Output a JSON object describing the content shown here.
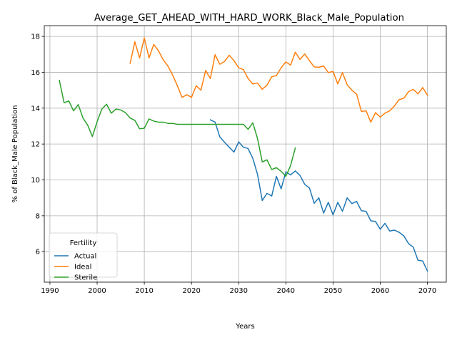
{
  "chart_data": {
    "type": "line",
    "title": "Average_GET_AHEAD_WITH_HARD_WORK_Black_Male_Population",
    "xlabel": "Years",
    "ylabel": "% of Black_Male Population",
    "xlim": [
      1988.8,
      2074.0
    ],
    "ylim": [
      4.3,
      18.6
    ],
    "xticks": [
      1990,
      2000,
      2010,
      2020,
      2030,
      2040,
      2050,
      2060,
      2070
    ],
    "yticks": [
      6,
      8,
      10,
      12,
      14,
      16,
      18
    ],
    "grid": true,
    "legend": {
      "title": "Fertility",
      "placement": "lower-left"
    },
    "series": [
      {
        "name": "Actual",
        "color": "#1f77b4",
        "x": [
          2024,
          2025,
          2026,
          2027,
          2028,
          2029,
          2030,
          2031,
          2032,
          2033,
          2034,
          2035,
          2036,
          2037,
          2038,
          2039,
          2040,
          2041,
          2042,
          2043,
          2044,
          2045,
          2046,
          2047,
          2048,
          2049,
          2050,
          2051,
          2052,
          2053,
          2054,
          2055,
          2056,
          2057,
          2058,
          2059,
          2060,
          2061,
          2062,
          2063,
          2064,
          2065,
          2066,
          2067,
          2068,
          2069,
          2070
        ],
        "y": [
          13.35,
          13.22,
          12.4,
          12.1,
          11.82,
          11.55,
          12.12,
          11.82,
          11.75,
          11.2,
          10.3,
          8.85,
          9.25,
          9.1,
          10.2,
          9.5,
          10.45,
          10.28,
          10.5,
          10.25,
          9.75,
          9.55,
          8.7,
          9.0,
          8.15,
          8.75,
          8.05,
          8.75,
          8.25,
          9.0,
          8.68,
          8.8,
          8.28,
          8.25,
          7.72,
          7.68,
          7.25,
          7.58,
          7.15,
          7.2,
          7.08,
          6.88,
          6.45,
          6.25,
          5.52,
          5.48,
          4.92
        ]
      },
      {
        "name": "Ideal",
        "color": "#ff7f0e",
        "x": [
          2007,
          2008,
          2009,
          2010,
          2011,
          2012,
          2013,
          2014,
          2015,
          2016,
          2017,
          2018,
          2019,
          2020,
          2021,
          2022,
          2023,
          2024,
          2025,
          2026,
          2027,
          2028,
          2029,
          2030,
          2031,
          2032,
          2033,
          2034,
          2035,
          2036,
          2037,
          2038,
          2039,
          2040,
          2041,
          2042,
          2043,
          2044,
          2045,
          2046,
          2047,
          2048,
          2049,
          2050,
          2051,
          2052,
          2053,
          2054,
          2055,
          2056,
          2057,
          2058,
          2059,
          2060,
          2061,
          2062,
          2063,
          2064,
          2065,
          2066,
          2067,
          2068,
          2069,
          2070
        ],
        "y": [
          16.5,
          17.7,
          16.8,
          17.92,
          16.8,
          17.55,
          17.2,
          16.7,
          16.35,
          15.85,
          15.25,
          14.6,
          14.75,
          14.6,
          15.25,
          15.0,
          16.1,
          15.65,
          16.98,
          16.45,
          16.6,
          16.95,
          16.65,
          16.25,
          16.15,
          15.65,
          15.35,
          15.4,
          15.05,
          15.28,
          15.75,
          15.82,
          16.25,
          16.58,
          16.4,
          17.12,
          16.72,
          17.02,
          16.65,
          16.3,
          16.28,
          16.35,
          15.98,
          16.05,
          15.35,
          15.98,
          15.3,
          15.0,
          14.78,
          13.82,
          13.85,
          13.22,
          13.75,
          13.5,
          13.72,
          13.85,
          14.12,
          14.48,
          14.55,
          14.92,
          15.05,
          14.8,
          15.15,
          14.72
        ]
      },
      {
        "name": "Sterile",
        "color": "#2ca02c",
        "x": [
          1992,
          1993,
          1994,
          1995,
          1996,
          1997,
          1998,
          1999,
          2000,
          2001,
          2002,
          2003,
          2004,
          2005,
          2006,
          2007,
          2008,
          2009,
          2010,
          2011,
          2012,
          2013,
          2014,
          2015,
          2016,
          2017,
          2018,
          2019,
          2020,
          2021,
          2022,
          2023,
          2024,
          2025,
          2026,
          2027,
          2028,
          2029,
          2030,
          2031,
          2032,
          2033,
          2034,
          2035,
          2036,
          2037,
          2038,
          2039,
          2040,
          2041,
          2042
        ],
        "y": [
          15.55,
          14.3,
          14.4,
          13.85,
          14.2,
          13.45,
          13.05,
          12.42,
          13.25,
          13.95,
          14.22,
          13.72,
          13.95,
          13.9,
          13.75,
          13.45,
          13.32,
          12.85,
          12.88,
          13.4,
          13.28,
          13.22,
          13.22,
          13.15,
          13.15,
          13.1,
          13.1,
          13.1,
          13.1,
          13.1,
          13.1,
          13.1,
          13.1,
          13.1,
          13.1,
          13.1,
          13.1,
          13.1,
          13.1,
          13.1,
          12.82,
          13.18,
          12.3,
          11.0,
          11.12,
          10.58,
          10.68,
          10.48,
          10.2,
          10.8,
          11.78
        ]
      }
    ]
  }
}
